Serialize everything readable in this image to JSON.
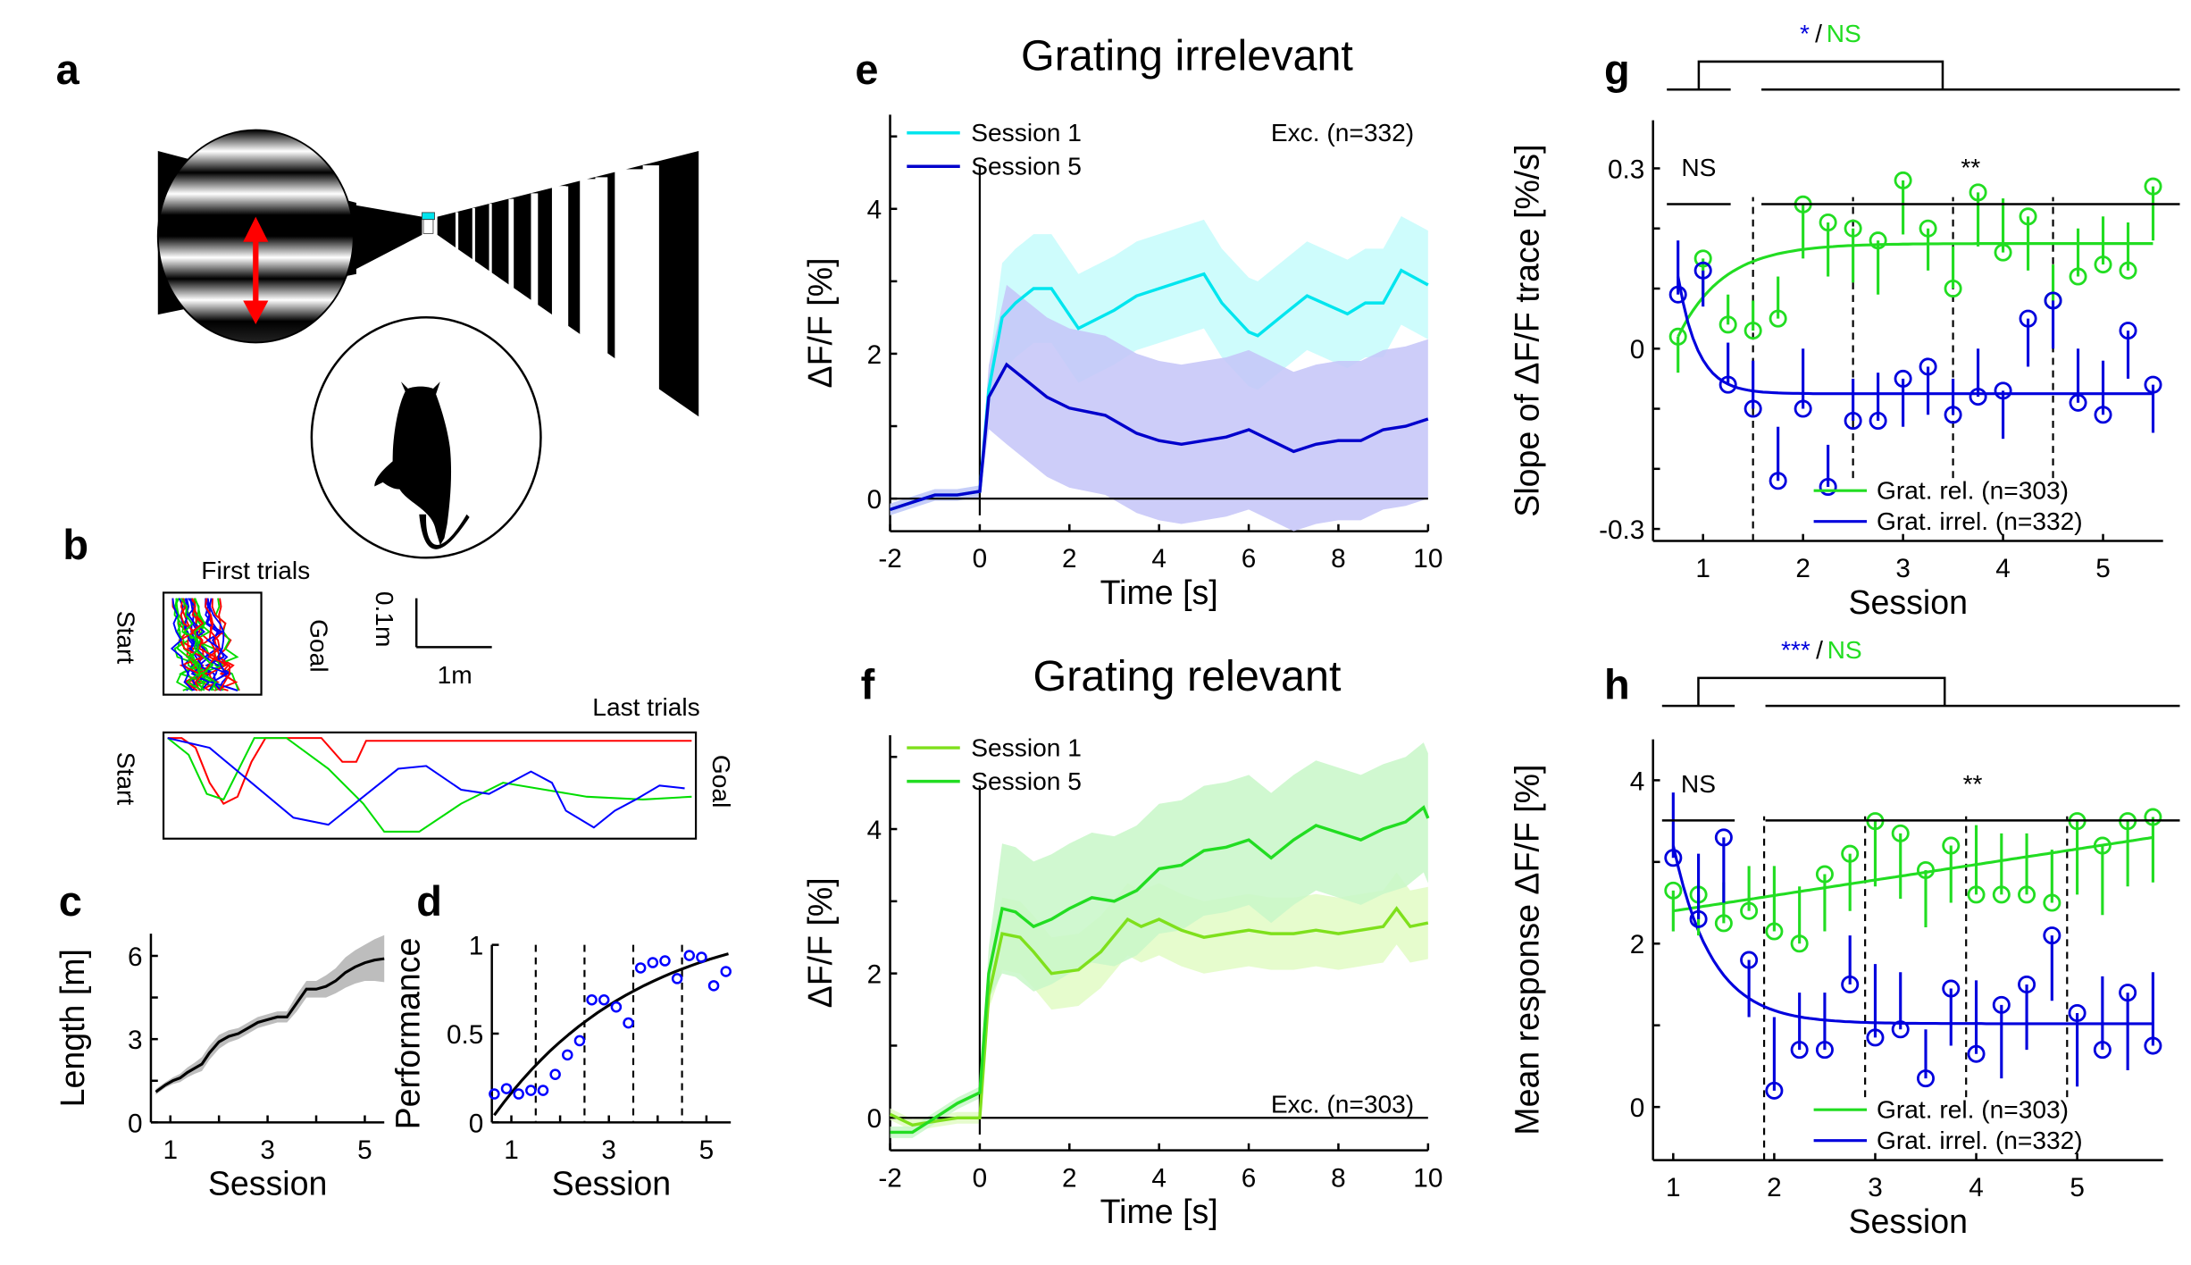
{
  "figure": {
    "panel_labels": [
      "a",
      "b",
      "c",
      "d",
      "e",
      "f",
      "g",
      "h"
    ]
  },
  "panel_a": {
    "description": "Virtual corridor with grating stimulus and mouse on ball",
    "colors": {
      "arrow": "#ff0000",
      "goal_marker": "#00e5ee"
    }
  },
  "panel_b": {
    "first_trials_label": "First trials",
    "last_trials_label": "Last trials",
    "start_label": "Start",
    "goal_label": "Goal",
    "scale_y_label": "0.1m",
    "scale_x_label": "1m",
    "trace_colors": [
      "#ff0000",
      "#00dd00",
      "#0000ff"
    ]
  },
  "chart_data": [
    {
      "id": "c",
      "type": "line",
      "xlabel": "Session",
      "ylabel": "Length [m]",
      "xticks": [
        1,
        3,
        5
      ],
      "yticks": [
        0,
        3,
        6
      ],
      "xlim": [
        0.6,
        5.4
      ],
      "ylim": [
        0,
        6.8
      ],
      "x": [
        0.7,
        0.9,
        1.05,
        1.2,
        1.35,
        1.5,
        1.65,
        1.8,
        2.0,
        2.2,
        2.4,
        2.6,
        2.8,
        3.0,
        3.2,
        3.4,
        3.6,
        3.8,
        4.0,
        4.2,
        4.4,
        4.6,
        4.8,
        5.0,
        5.2,
        5.4
      ],
      "y": [
        1.1,
        1.35,
        1.5,
        1.6,
        1.8,
        1.95,
        2.1,
        2.5,
        2.9,
        3.1,
        3.2,
        3.4,
        3.6,
        3.7,
        3.8,
        3.8,
        4.3,
        4.8,
        4.8,
        4.9,
        5.1,
        5.4,
        5.6,
        5.75,
        5.85,
        5.9
      ],
      "band_halfwidth": [
        0.1,
        0.1,
        0.12,
        0.15,
        0.18,
        0.2,
        0.25,
        0.25,
        0.25,
        0.22,
        0.2,
        0.2,
        0.2,
        0.2,
        0.2,
        0.2,
        0.3,
        0.3,
        0.3,
        0.4,
        0.45,
        0.55,
        0.6,
        0.65,
        0.75,
        0.85
      ],
      "colors": {
        "line": "#000000",
        "band": "#bdbdbd"
      }
    },
    {
      "id": "d",
      "type": "scatter",
      "xlabel": "Session",
      "ylabel": "Performance",
      "xticks": [
        1,
        3,
        5
      ],
      "yticks": [
        0,
        0.5,
        1
      ],
      "xlim": [
        0.6,
        5.5
      ],
      "ylim": [
        0,
        1
      ],
      "x": [
        0.65,
        0.9,
        1.15,
        1.4,
        1.65,
        1.9,
        2.15,
        2.4,
        2.65,
        2.9,
        3.15,
        3.4,
        3.65,
        3.9,
        4.15,
        4.4,
        4.65,
        4.9,
        5.15,
        5.4
      ],
      "y": [
        0.16,
        0.19,
        0.16,
        0.18,
        0.18,
        0.27,
        0.38,
        0.46,
        0.69,
        0.69,
        0.65,
        0.56,
        0.87,
        0.9,
        0.91,
        0.81,
        0.94,
        0.93,
        0.77,
        0.85
      ],
      "fit": {
        "type": "saturating",
        "from": [
          0.65,
          0.04
        ],
        "to": [
          5.45,
          0.95
        ]
      },
      "session_boundaries": [
        1.5,
        2.5,
        3.5,
        4.5
      ],
      "colors": {
        "points": "#0000ff",
        "fit": "#000000"
      }
    },
    {
      "id": "e",
      "type": "line",
      "title": "Grating irrelevant",
      "xlabel": "Time [s]",
      "ylabel": "ΔF/F [%]",
      "xticks": [
        -2,
        0,
        2,
        4,
        6,
        8,
        10
      ],
      "yticks": [
        0,
        2,
        4
      ],
      "xlim": [
        -2,
        10
      ],
      "ylim": [
        -0.45,
        5.3
      ],
      "annotation": "Exc. (n=332)",
      "legend": [
        {
          "label": "Session 1",
          "color": "#00e5ee"
        },
        {
          "label": "Session 5",
          "color": "#0000cc"
        }
      ],
      "series": [
        {
          "name": "Session 1",
          "x": [
            -2,
            -1.5,
            -1,
            -0.5,
            0,
            0.2,
            0.5,
            0.8,
            1.2,
            1.6,
            2.2,
            3,
            3.5,
            4,
            4.5,
            5,
            5.4,
            6,
            6.2,
            6.8,
            7.3,
            8.2,
            8.6,
            9,
            9.4,
            10
          ],
          "y": [
            -0.15,
            -0.05,
            0.05,
            0.05,
            0.1,
            1.5,
            2.5,
            2.7,
            2.9,
            2.9,
            2.35,
            2.6,
            2.8,
            2.9,
            3.0,
            3.1,
            2.7,
            2.3,
            2.25,
            2.55,
            2.8,
            2.55,
            2.7,
            2.7,
            3.15,
            2.95
          ],
          "band_halfwidth": 0.75,
          "color": "#00e5ee",
          "band_color": "#c6fbfb"
        },
        {
          "name": "Session 5",
          "x": [
            -2,
            -1.5,
            -1,
            -0.5,
            0,
            0.2,
            0.6,
            1,
            1.5,
            2,
            2.8,
            3.5,
            4,
            4.5,
            5,
            5.5,
            6,
            6.5,
            7,
            7.5,
            8,
            8.5,
            9,
            9.5,
            10
          ],
          "y": [
            -0.15,
            -0.05,
            0.05,
            0.05,
            0.1,
            1.4,
            1.85,
            1.65,
            1.4,
            1.25,
            1.15,
            0.9,
            0.8,
            0.75,
            0.8,
            0.85,
            0.95,
            0.8,
            0.65,
            0.75,
            0.8,
            0.8,
            0.95,
            1.0,
            1.1
          ],
          "band_halfwidth": 1.1,
          "color": "#0000cc",
          "band_color": "#c4c4f8"
        }
      ]
    },
    {
      "id": "f",
      "type": "line",
      "title": "Grating relevant",
      "xlabel": "Time [s]",
      "ylabel": "ΔF/F [%]",
      "xticks": [
        -2,
        0,
        2,
        4,
        6,
        8,
        10
      ],
      "yticks": [
        0,
        2,
        4
      ],
      "xlim": [
        -2,
        10
      ],
      "ylim": [
        -0.45,
        5.3
      ],
      "annotation": "Exc. (n=303)",
      "legend": [
        {
          "label": "Session 1",
          "color": "#7fe01c"
        },
        {
          "label": "Session 5",
          "color": "#22dd22"
        }
      ],
      "series": [
        {
          "name": "Session 1",
          "x": [
            -2,
            -1.5,
            -1,
            -0.5,
            0,
            0.2,
            0.5,
            0.9,
            1.2,
            1.6,
            2.2,
            2.7,
            3.3,
            3.6,
            4,
            4.5,
            5,
            5.5,
            6,
            6.5,
            7,
            7.5,
            8,
            8.5,
            9,
            9.3,
            9.6,
            10
          ],
          "y": [
            0.05,
            -0.1,
            -0.05,
            0.0,
            0.0,
            1.7,
            2.55,
            2.5,
            2.3,
            2.0,
            2.05,
            2.3,
            2.75,
            2.65,
            2.75,
            2.6,
            2.5,
            2.55,
            2.6,
            2.55,
            2.55,
            2.6,
            2.55,
            2.6,
            2.65,
            2.9,
            2.65,
            2.7
          ],
          "band_halfwidth": 0.5,
          "color": "#7fe01c",
          "band_color": "#e2fbc4"
        },
        {
          "name": "Session 5",
          "x": [
            -2,
            -1.5,
            -1,
            -0.5,
            0,
            0.2,
            0.5,
            0.8,
            1.2,
            1.6,
            2,
            2.5,
            3,
            3.5,
            4,
            4.5,
            5,
            5.5,
            6,
            6.5,
            7,
            7.5,
            8,
            8.5,
            9,
            9.5,
            9.9,
            10
          ],
          "y": [
            -0.2,
            -0.2,
            0.0,
            0.2,
            0.35,
            2.0,
            2.9,
            2.85,
            2.65,
            2.75,
            2.9,
            3.05,
            3.0,
            3.15,
            3.45,
            3.5,
            3.7,
            3.75,
            3.85,
            3.6,
            3.85,
            4.05,
            3.95,
            3.85,
            4.0,
            4.1,
            4.3,
            4.15
          ],
          "band_halfwidth": 0.9,
          "color": "#22dd22",
          "band_color": "#c8f7c8"
        }
      ]
    },
    {
      "id": "g",
      "type": "scatter",
      "xlabel": "Session",
      "ylabel": "Slope of ΔF/F trace [%/s]",
      "xticks": [
        1,
        2,
        3,
        4,
        5
      ],
      "yticks": [
        -0.3,
        0,
        0.3
      ],
      "ytick_labels": [
        "-0.3",
        "0",
        "0.3"
      ],
      "xlim": [
        0.5,
        5.6
      ],
      "ylim": [
        -0.32,
        0.38
      ],
      "significance": {
        "top_left": "*",
        "top_sep": "/",
        "top_right": "NS",
        "left_group": "NS",
        "right_group": "**"
      },
      "session_boundaries": [
        1.5,
        2.5,
        3.5,
        4.5
      ],
      "legend": [
        {
          "label": "Grat. rel. (n=303)",
          "color": "#22dd22"
        },
        {
          "label": "Grat. irrel. (n=332)",
          "color": "#0000dd"
        }
      ],
      "x": [
        0.75,
        1.0,
        1.25,
        1.5,
        1.75,
        2.0,
        2.25,
        2.5,
        2.75,
        3.0,
        3.25,
        3.5,
        3.75,
        4.0,
        4.25,
        4.5,
        4.75,
        5.0,
        5.25,
        5.5
      ],
      "series": [
        {
          "name": "Grat. rel. (n=303)",
          "color": "#22dd22",
          "y": [
            0.02,
            0.15,
            0.04,
            0.03,
            0.05,
            0.24,
            0.21,
            0.2,
            0.18,
            0.28,
            0.2,
            0.1,
            0.26,
            0.16,
            0.22,
            0.08,
            0.12,
            0.14,
            0.13,
            0.27
          ],
          "err": [
            -0.06,
            -0.06,
            0.05,
            0.05,
            0.07,
            -0.09,
            -0.09,
            -0.09,
            -0.09,
            -0.09,
            -0.07,
            0.07,
            -0.09,
            0.09,
            -0.09,
            0.06,
            0.08,
            0.08,
            0.08,
            -0.09
          ],
          "fit": {
            "type": "exp_rise",
            "start": 0.02,
            "plateau": 0.175,
            "rate": 2.2
          }
        },
        {
          "name": "Grat. irrel. (n=332)",
          "color": "#0000dd",
          "y": [
            0.09,
            0.13,
            -0.06,
            -0.1,
            -0.22,
            -0.1,
            -0.23,
            -0.12,
            -0.12,
            -0.05,
            -0.03,
            -0.11,
            -0.08,
            -0.07,
            0.05,
            0.08,
            -0.09,
            -0.11,
            0.03,
            -0.06
          ],
          "err": [
            0.09,
            -0.06,
            0.07,
            0.08,
            0.09,
            0.1,
            0.07,
            0.07,
            0.08,
            -0.08,
            -0.08,
            0.06,
            0.08,
            -0.08,
            -0.08,
            -0.08,
            0.09,
            0.09,
            -0.08,
            -0.08
          ],
          "fit": {
            "type": "exp_decay",
            "start": 0.12,
            "plateau": -0.075,
            "rate": 5.0
          }
        }
      ]
    },
    {
      "id": "h",
      "type": "scatter",
      "xlabel": "Session",
      "ylabel": "Mean response ΔF/F [%]",
      "xticks": [
        1,
        2,
        3,
        4,
        5
      ],
      "yticks": [
        0,
        2,
        4
      ],
      "xlim": [
        0.8,
        5.85
      ],
      "ylim": [
        -0.65,
        4.5
      ],
      "significance": {
        "top_left": "***",
        "top_sep": "/",
        "top_right": "NS",
        "left_group": "NS",
        "right_group": "**"
      },
      "session_boundaries": [
        1.9,
        2.9,
        3.9,
        4.9
      ],
      "legend": [
        {
          "label": "Grat. rel. (n=303)",
          "color": "#22dd22"
        },
        {
          "label": "Grat. irrel. (n=332)",
          "color": "#0000dd"
        }
      ],
      "x": [
        1.0,
        1.25,
        1.5,
        1.75,
        2.0,
        2.25,
        2.5,
        2.75,
        3.0,
        3.25,
        3.5,
        3.75,
        4.0,
        4.25,
        4.5,
        4.75,
        5.0,
        5.25,
        5.5,
        5.75
      ],
      "series": [
        {
          "name": "Grat. rel. (n=303)",
          "color": "#22dd22",
          "y": [
            2.65,
            2.6,
            2.25,
            2.4,
            2.15,
            2.0,
            2.85,
            3.1,
            3.5,
            3.35,
            2.9,
            3.2,
            2.6,
            2.6,
            2.6,
            2.5,
            3.5,
            3.2,
            3.5,
            3.55
          ],
          "err": [
            -0.5,
            -0.5,
            0.5,
            0.55,
            0.8,
            0.7,
            -0.7,
            -0.7,
            -0.8,
            -0.8,
            -0.7,
            -0.7,
            0.85,
            0.75,
            0.75,
            0.65,
            -0.9,
            -0.85,
            -0.8,
            -0.8
          ],
          "fit": {
            "type": "linear",
            "start": 2.4,
            "end": 3.3
          }
        },
        {
          "name": "Grat. irrel. (n=332)",
          "color": "#0000dd",
          "y": [
            3.05,
            2.3,
            3.3,
            1.8,
            0.2,
            0.7,
            0.7,
            1.5,
            0.85,
            0.95,
            0.35,
            1.45,
            0.65,
            1.25,
            1.5,
            2.1,
            1.15,
            0.7,
            1.4,
            0.75
          ],
          "err": [
            0.8,
            0.8,
            -0.8,
            -0.7,
            0.9,
            0.7,
            0.7,
            0.6,
            0.9,
            0.7,
            0.6,
            -0.7,
            0.9,
            -0.9,
            -0.8,
            -0.8,
            -0.9,
            0.9,
            -0.95,
            0.9
          ],
          "fit": {
            "type": "exp_decay",
            "start": 3.2,
            "plateau": 1.02,
            "rate": 2.6
          }
        }
      ]
    }
  ]
}
